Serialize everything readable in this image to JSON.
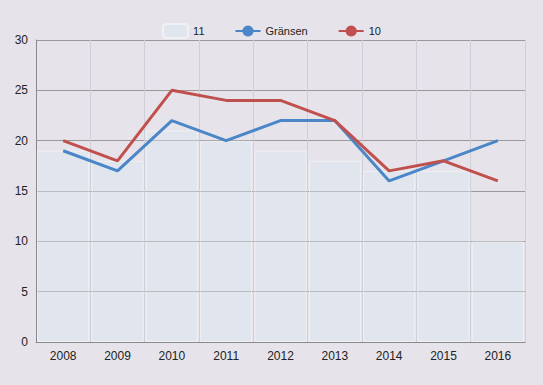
{
  "chart_data": {
    "type": "line",
    "categories": [
      "2008",
      "2009",
      "2010",
      "2011",
      "2012",
      "2013",
      "2014",
      "2015",
      "2016"
    ],
    "series": [
      {
        "name": "11",
        "type": "bar",
        "color": "#dce6f2",
        "values": [
          19,
          18,
          21,
          20,
          19,
          18,
          17,
          17,
          10
        ]
      },
      {
        "name": "Gränsen",
        "type": "line",
        "color": "#4a86c8",
        "values": [
          19,
          17,
          22,
          20,
          22,
          22,
          16,
          18,
          20
        ]
      },
      {
        "name": "10",
        "type": "line",
        "color": "#c0504d",
        "values": [
          20,
          18,
          25,
          24,
          24,
          22,
          17,
          18,
          16
        ]
      }
    ],
    "ylim": [
      0,
      30
    ],
    "yticks": [
      0,
      5,
      10,
      15,
      20,
      25,
      30
    ],
    "grid": true,
    "legend": "top"
  }
}
